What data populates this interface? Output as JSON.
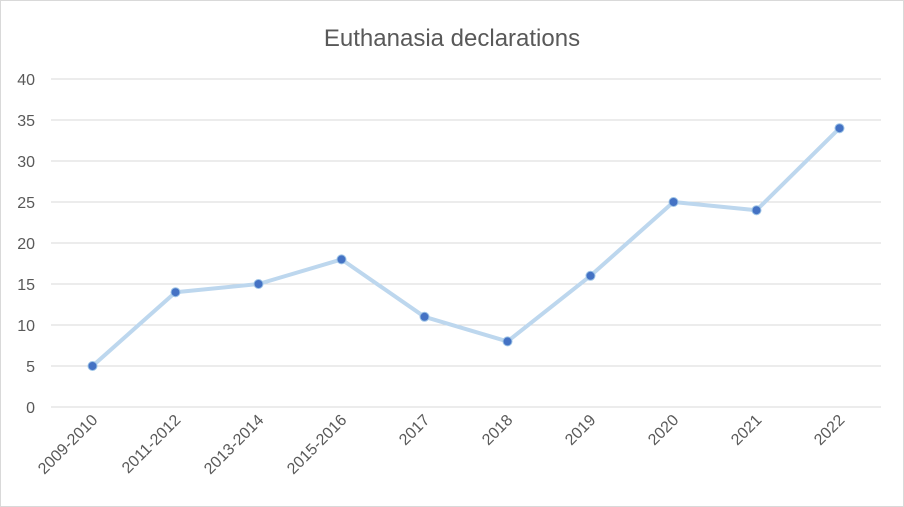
{
  "chart_data": {
    "type": "line",
    "title": "Euthanasia declarations",
    "categories": [
      "2009-2010",
      "2011-2012",
      "2013-2014",
      "2015-2016",
      "2017",
      "2018",
      "2019",
      "2020",
      "2021",
      "2022"
    ],
    "series": [
      {
        "values": [
          5,
          14,
          15,
          18,
          11,
          8,
          16,
          25,
          24,
          34
        ]
      }
    ],
    "ylim": [
      0,
      40
    ],
    "yticks": [
      0,
      5,
      10,
      15,
      20,
      25,
      30,
      35,
      40
    ],
    "grid": true,
    "legend": "none",
    "colors": {
      "line": "#bdd7ee",
      "marker": "#4472c4",
      "grid": "#d9d9d9",
      "text": "#595959"
    }
  }
}
